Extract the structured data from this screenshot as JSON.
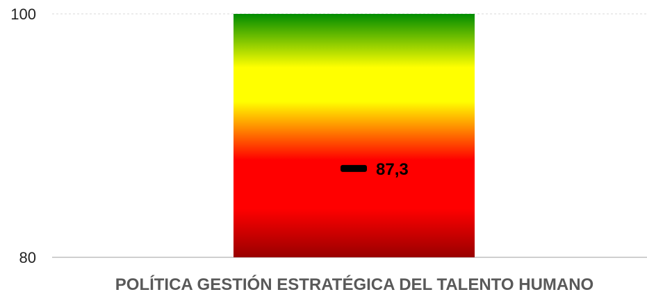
{
  "chart_data": {
    "type": "bar",
    "categories": [
      "POLÍTICA GESTIÓN ESTRATÉGICA DEL TALENTO HUMANO"
    ],
    "ylim": [
      80,
      100
    ],
    "y_ticks": [
      80,
      100
    ],
    "y_tick_labels": [
      "80",
      "100"
    ],
    "band_value": 100,
    "marker_value": 87.3,
    "marker_label": "87,3",
    "grid": true,
    "colors": {
      "gradient_stops": [
        "#008c00",
        "#ffff00",
        "#ffff00",
        "#ff0000",
        "#ff0000",
        "#990000"
      ],
      "marker": "#000000",
      "gridline": "#d9d9d9",
      "baseline": "#bfbfbf"
    }
  }
}
